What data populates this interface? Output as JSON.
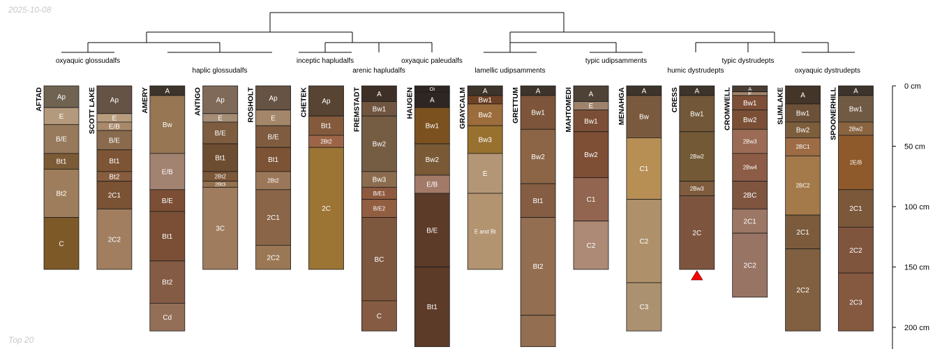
{
  "header": {
    "date": "2025-10-08"
  },
  "footer": {
    "note": "Top 20"
  },
  "axis": {
    "ticks": [
      {
        "depth": 0,
        "label": "0 cm"
      },
      {
        "depth": 50,
        "label": "50 cm"
      },
      {
        "depth": 100,
        "label": "100 cm"
      },
      {
        "depth": 150,
        "label": "150 cm"
      },
      {
        "depth": 200,
        "label": "200 cm"
      }
    ]
  },
  "taxa": [
    {
      "label": "oxyaquic glossudalfs",
      "profiles": [
        0,
        1
      ]
    },
    {
      "label": "haplic glossudalfs",
      "profiles": [
        2,
        3,
        4
      ]
    },
    {
      "label": "inceptic hapludalfs",
      "profiles": [
        5,
        6
      ]
    },
    {
      "label": "arenic hapludalfs",
      "profiles": [
        6
      ]
    },
    {
      "label": "oxyaquic paleudalfs",
      "profiles": [
        7
      ]
    },
    {
      "label": "lamellic udipsamments",
      "profiles": [
        8,
        9
      ]
    },
    {
      "label": "typic udipsamments",
      "profiles": [
        10,
        11
      ]
    },
    {
      "label": "humic dystrudepts",
      "profiles": [
        12
      ]
    },
    {
      "label": "typic dystrudepts",
      "profiles": [
        13,
        14
      ]
    },
    {
      "label": "oxyaquic dystrudepts",
      "profiles": [
        14,
        15
      ]
    }
  ],
  "profiles": [
    {
      "name": "AFTAD",
      "horizons": [
        {
          "name": "Ap",
          "top": 0,
          "bottom": 18,
          "color": "#716352"
        },
        {
          "name": "E",
          "top": 18,
          "bottom": 32,
          "color": "#b49a7c"
        },
        {
          "name": "B/E",
          "top": 32,
          "bottom": 56,
          "color": "#97795b"
        },
        {
          "name": "Bt1",
          "top": 56,
          "bottom": 69,
          "color": "#7b5b36"
        },
        {
          "name": "Bt2",
          "top": 69,
          "bottom": 109,
          "color": "#9d7d5b"
        },
        {
          "name": "C",
          "top": 109,
          "bottom": 152,
          "color": "#7d5927"
        }
      ]
    },
    {
      "name": "SCOTT LAKE",
      "horizons": [
        {
          "name": "Ap",
          "top": 0,
          "bottom": 23,
          "color": "#655345"
        },
        {
          "name": "E",
          "top": 23,
          "bottom": 30,
          "color": "#b79d7e"
        },
        {
          "name": "E/B",
          "top": 30,
          "bottom": 37,
          "color": "#a9896a"
        },
        {
          "name": "B/E",
          "top": 37,
          "bottom": 53,
          "color": "#8a6a4c"
        },
        {
          "name": "Bt1",
          "top": 53,
          "bottom": 71,
          "color": "#7d5536"
        },
        {
          "name": "Bt2",
          "top": 71,
          "bottom": 79,
          "color": "#885d3f"
        },
        {
          "name": "2C1",
          "top": 79,
          "bottom": 102,
          "color": "#7a5234"
        },
        {
          "name": "2C2",
          "top": 102,
          "bottom": 152,
          "color": "#a07e5f"
        }
      ]
    },
    {
      "name": "AMERY",
      "horizons": [
        {
          "name": "A",
          "top": 0,
          "bottom": 8,
          "color": "#3d342b"
        },
        {
          "name": "Bw",
          "top": 8,
          "bottom": 56,
          "color": "#967653"
        },
        {
          "name": "E/B",
          "top": 56,
          "bottom": 86,
          "color": "#a28270"
        },
        {
          "name": "B/E",
          "top": 86,
          "bottom": 104,
          "color": "#7b4e35"
        },
        {
          "name": "Bt1",
          "top": 104,
          "bottom": 145,
          "color": "#7a4f36"
        },
        {
          "name": "Bt2",
          "top": 145,
          "bottom": 180,
          "color": "#845b44"
        },
        {
          "name": "Cd",
          "top": 180,
          "bottom": 203,
          "color": "#926f56"
        }
      ]
    },
    {
      "name": "ANTIGO",
      "horizons": [
        {
          "name": "Ap",
          "top": 0,
          "bottom": 23,
          "color": "#7f6a5a"
        },
        {
          "name": "E",
          "top": 23,
          "bottom": 30,
          "color": "#a58c75"
        },
        {
          "name": "B/E",
          "top": 30,
          "bottom": 48,
          "color": "#7d5c3f"
        },
        {
          "name": "Bt1",
          "top": 48,
          "bottom": 71,
          "color": "#6d4d32"
        },
        {
          "name": "2Bt2",
          "top": 71,
          "bottom": 79,
          "color": "#7c5738"
        },
        {
          "name": "2Bt3",
          "top": 79,
          "bottom": 84,
          "color": "#93704f"
        },
        {
          "name": "3C",
          "top": 84,
          "bottom": 152,
          "color": "#9f7c5e"
        }
      ]
    },
    {
      "name": "ROSHOLT",
      "horizons": [
        {
          "name": "Ap",
          "top": 0,
          "bottom": 20,
          "color": "#665344"
        },
        {
          "name": "E",
          "top": 20,
          "bottom": 33,
          "color": "#a4866a"
        },
        {
          "name": "B/E",
          "top": 33,
          "bottom": 51,
          "color": "#7f5b3f"
        },
        {
          "name": "Bt1",
          "top": 51,
          "bottom": 71,
          "color": "#7c5435"
        },
        {
          "name": "2Bt2",
          "top": 71,
          "bottom": 86,
          "color": "#9b7759"
        },
        {
          "name": "2C1",
          "top": 86,
          "bottom": 132,
          "color": "#8a6548"
        },
        {
          "name": "2C2",
          "top": 132,
          "bottom": 152,
          "color": "#9a7856"
        }
      ]
    },
    {
      "name": "CHETEK",
      "horizons": [
        {
          "name": "Ap",
          "top": 0,
          "bottom": 25,
          "color": "#574433"
        },
        {
          "name": "Bt1",
          "top": 25,
          "bottom": 41,
          "color": "#835a3c"
        },
        {
          "name": "2Bt2",
          "top": 41,
          "bottom": 51,
          "color": "#9c6547"
        },
        {
          "name": "2C",
          "top": 51,
          "bottom": 152,
          "color": "#9c7434"
        }
      ]
    },
    {
      "name": "FREMSTADT",
      "horizons": [
        {
          "name": "A",
          "top": 0,
          "bottom": 13,
          "color": "#3f3027"
        },
        {
          "name": "Bw1",
          "top": 13,
          "bottom": 25,
          "color": "#705540"
        },
        {
          "name": "Bw2",
          "top": 25,
          "bottom": 71,
          "color": "#755d44"
        },
        {
          "name": "Bw3",
          "top": 71,
          "bottom": 84,
          "color": "#8b6c4f"
        },
        {
          "name": "B/E1",
          "top": 84,
          "bottom": 94,
          "color": "#8e5a3f"
        },
        {
          "name": "B/E2",
          "top": 94,
          "bottom": 109,
          "color": "#925e42"
        },
        {
          "name": "BC",
          "top": 109,
          "bottom": 178,
          "color": "#7e573f"
        },
        {
          "name": "C",
          "top": 178,
          "bottom": 203,
          "color": "#855c43"
        }
      ]
    },
    {
      "name": "HAUGEN",
      "horizons": [
        {
          "name": "Oi",
          "top": 0,
          "bottom": 5,
          "color": "#2e2622"
        },
        {
          "name": "A",
          "top": 5,
          "bottom": 18,
          "color": "#2e2622"
        },
        {
          "name": "Bw1",
          "top": 18,
          "bottom": 48,
          "color": "#7b521f"
        },
        {
          "name": "Bw2",
          "top": 48,
          "bottom": 74,
          "color": "#7a5a36"
        },
        {
          "name": "E/B",
          "top": 74,
          "bottom": 89,
          "color": "#a37a68"
        },
        {
          "name": "B/E",
          "top": 89,
          "bottom": 150,
          "color": "#5c3b29"
        },
        {
          "name": "Bt1",
          "top": 150,
          "bottom": 216,
          "color": "#5c3b29"
        }
      ]
    },
    {
      "name": "GRAYCALM",
      "horizons": [
        {
          "name": "A",
          "top": 0,
          "bottom": 8,
          "color": "#3d342b"
        },
        {
          "name": "Bw1",
          "top": 8,
          "bottom": 15,
          "color": "#6e4025"
        },
        {
          "name": "Bw2",
          "top": 15,
          "bottom": 33,
          "color": "#9b6c3c"
        },
        {
          "name": "Bw3",
          "top": 33,
          "bottom": 56,
          "color": "#98712f"
        },
        {
          "name": "E",
          "top": 56,
          "bottom": 89,
          "color": "#b39676"
        },
        {
          "name": "E and Bt",
          "top": 89,
          "bottom": 152,
          "color": "#b29470"
        }
      ]
    },
    {
      "name": "GRETTUM",
      "horizons": [
        {
          "name": "A",
          "top": 0,
          "bottom": 8,
          "color": "#3d342b"
        },
        {
          "name": "Bw1",
          "top": 8,
          "bottom": 36,
          "color": "#7c553a"
        },
        {
          "name": "Bw2",
          "top": 36,
          "bottom": 81,
          "color": "#8b6546"
        },
        {
          "name": "Bt1",
          "top": 81,
          "bottom": 109,
          "color": "#845d42"
        },
        {
          "name": "Bt2",
          "top": 109,
          "bottom": 190,
          "color": "#936e51"
        },
        {
          "name": "",
          "top": 190,
          "bottom": 216,
          "color": "#936e51"
        }
      ]
    },
    {
      "name": "MAHTOMEDI",
      "horizons": [
        {
          "name": "A",
          "top": 0,
          "bottom": 13,
          "color": "#4e4237"
        },
        {
          "name": "E",
          "top": 13,
          "bottom": 20,
          "color": "#9e826c"
        },
        {
          "name": "Bw1",
          "top": 20,
          "bottom": 38,
          "color": "#7b4f37"
        },
        {
          "name": "Bw2",
          "top": 38,
          "bottom": 76,
          "color": "#7e4e35"
        },
        {
          "name": "C1",
          "top": 76,
          "bottom": 112,
          "color": "#926550"
        },
        {
          "name": "C2",
          "top": 112,
          "bottom": 152,
          "color": "#ad8a76"
        }
      ]
    },
    {
      "name": "MENAHGA",
      "horizons": [
        {
          "name": "A",
          "top": 0,
          "bottom": 8,
          "color": "#3d342b"
        },
        {
          "name": "Bw",
          "top": 8,
          "bottom": 43,
          "color": "#7a5a3e"
        },
        {
          "name": "C1",
          "top": 43,
          "bottom": 94,
          "color": "#b78f55"
        },
        {
          "name": "C2",
          "top": 94,
          "bottom": 163,
          "color": "#ae916a"
        },
        {
          "name": "C3",
          "top": 163,
          "bottom": 203,
          "color": "#ab9170"
        }
      ]
    },
    {
      "name": "CRESS",
      "horizons": [
        {
          "name": "A",
          "top": 0,
          "bottom": 8,
          "color": "#3d342b"
        },
        {
          "name": "Bw1",
          "top": 8,
          "bottom": 38,
          "color": "#725738"
        },
        {
          "name": "2Bw2",
          "top": 38,
          "bottom": 79,
          "color": "#735935"
        },
        {
          "name": "2Bw3",
          "top": 79,
          "bottom": 91,
          "color": "#7e5c3d"
        },
        {
          "name": "2C",
          "top": 91,
          "bottom": 152,
          "color": "#7d553f"
        }
      ]
    },
    {
      "name": "CROMWELL",
      "horizons": [
        {
          "name": "A",
          "top": 0,
          "bottom": 5,
          "color": "#4a3d33"
        },
        {
          "name": "E",
          "top": 5,
          "bottom": 8,
          "color": "#a4836a"
        },
        {
          "name": "Bw1",
          "top": 8,
          "bottom": 20,
          "color": "#7e4f37"
        },
        {
          "name": "Bw2",
          "top": 20,
          "bottom": 36,
          "color": "#7a4f36"
        },
        {
          "name": "2Bw3",
          "top": 36,
          "bottom": 56,
          "color": "#9b6b55"
        },
        {
          "name": "2Bw4",
          "top": 56,
          "bottom": 79,
          "color": "#8c5c46"
        },
        {
          "name": "2BC",
          "top": 79,
          "bottom": 102,
          "color": "#7f5540"
        },
        {
          "name": "2C1",
          "top": 102,
          "bottom": 122,
          "color": "#9c7765"
        },
        {
          "name": "2C2",
          "top": 122,
          "bottom": 175,
          "color": "#987465"
        }
      ]
    },
    {
      "name": "SLIMLAKE",
      "horizons": [
        {
          "name": "A",
          "top": 0,
          "bottom": 15,
          "color": "#433528"
        },
        {
          "name": "Bw1",
          "top": 15,
          "bottom": 30,
          "color": "#6c5138"
        },
        {
          "name": "Bw2",
          "top": 30,
          "bottom": 43,
          "color": "#7d5e3c"
        },
        {
          "name": "2BC1",
          "top": 43,
          "bottom": 58,
          "color": "#9d6c45"
        },
        {
          "name": "2BC2",
          "top": 58,
          "bottom": 107,
          "color": "#a47a4a"
        },
        {
          "name": "2C1",
          "top": 107,
          "bottom": 135,
          "color": "#7b5b3c"
        },
        {
          "name": "2C2",
          "top": 135,
          "bottom": 203,
          "color": "#806040"
        }
      ]
    },
    {
      "name": "SPOONERHILL",
      "horizons": [
        {
          "name": "A",
          "top": 0,
          "bottom": 8,
          "color": "#3d342b"
        },
        {
          "name": "Bw1",
          "top": 8,
          "bottom": 30,
          "color": "#705a44"
        },
        {
          "name": "2Bw2",
          "top": 30,
          "bottom": 41,
          "color": "#8a6440"
        },
        {
          "name": "2E/B",
          "top": 41,
          "bottom": 86,
          "color": "#8f5a2b"
        },
        {
          "name": "2C1",
          "top": 86,
          "bottom": 117,
          "color": "#7c583b"
        },
        {
          "name": "2C2",
          "top": 117,
          "bottom": 155,
          "color": "#80553e"
        },
        {
          "name": "2C3",
          "top": 155,
          "bottom": 203,
          "color": "#855840"
        }
      ]
    }
  ],
  "marker": {
    "profile": "CRESS",
    "color": "#ff0000"
  }
}
